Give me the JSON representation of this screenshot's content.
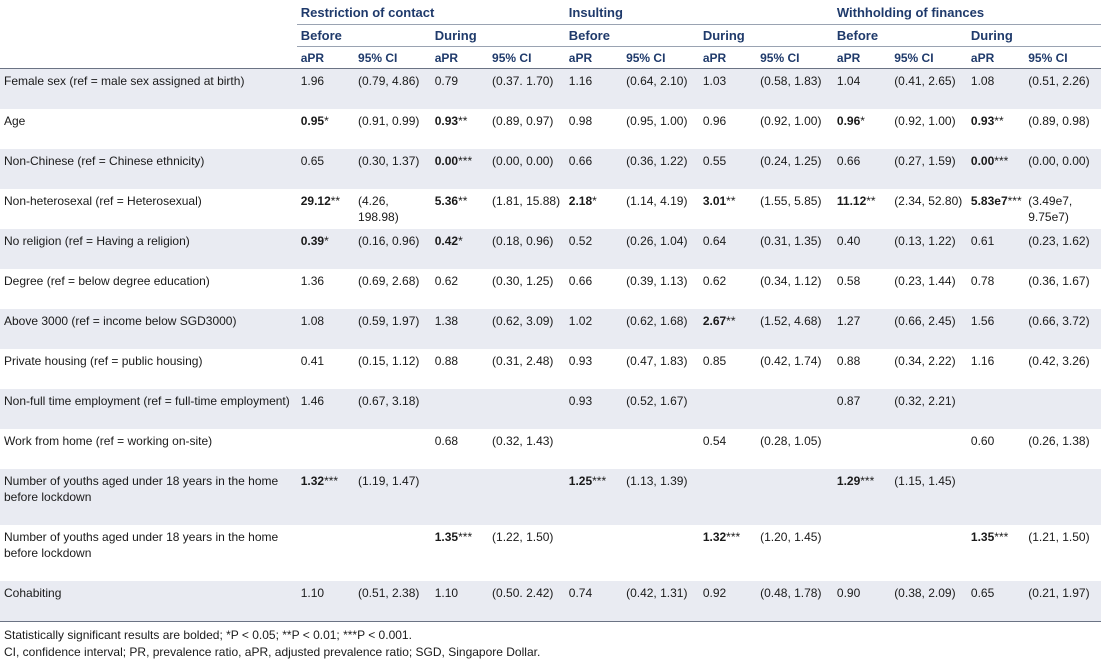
{
  "header": {
    "groups": [
      "Restriction of contact",
      "Insulting",
      "Withholding of finances"
    ],
    "periods": [
      "Before",
      "During"
    ],
    "stat_cols": [
      "aPR",
      "95% CI"
    ]
  },
  "rows": [
    {
      "label": "Female sex (ref = male sex assigned at birth)",
      "cells": [
        [
          "1.96",
          "",
          false
        ],
        [
          "(0.79, 4.86)",
          "",
          false
        ],
        [
          "0.79",
          "",
          false
        ],
        [
          "(0.37. 1.70)",
          "",
          false
        ],
        [
          "1.16",
          "",
          false
        ],
        [
          "(0.64, 2.10)",
          "",
          false
        ],
        [
          "1.03",
          "",
          false
        ],
        [
          "(0.58, 1.83)",
          "",
          false
        ],
        [
          "1.04",
          "",
          false
        ],
        [
          "(0.41, 2.65)",
          "",
          false
        ],
        [
          "1.08",
          "",
          false
        ],
        [
          "(0.51, 2.26)",
          "",
          false
        ]
      ]
    },
    {
      "label": "Age",
      "cells": [
        [
          "0.95",
          "*",
          true
        ],
        [
          "(0.91, 0.99)",
          "",
          false
        ],
        [
          "0.93",
          "**",
          true
        ],
        [
          "(0.89, 0.97)",
          "",
          false
        ],
        [
          "0.98",
          "",
          false
        ],
        [
          "(0.95, 1.00)",
          "",
          false
        ],
        [
          "0.96",
          "",
          false
        ],
        [
          "(0.92, 1.00)",
          "",
          false
        ],
        [
          "0.96",
          "*",
          true
        ],
        [
          "(0.92, 1.00)",
          "",
          false
        ],
        [
          "0.93",
          "**",
          true
        ],
        [
          "(0.89, 0.98)",
          "",
          false
        ]
      ]
    },
    {
      "label": "Non-Chinese (ref = Chinese ethnicity)",
      "cells": [
        [
          "0.65",
          "",
          false
        ],
        [
          "(0.30, 1.37)",
          "",
          false
        ],
        [
          "0.00",
          "***",
          true
        ],
        [
          "(0.00, 0.00)",
          "",
          false
        ],
        [
          "0.66",
          "",
          false
        ],
        [
          "(0.36, 1.22)",
          "",
          false
        ],
        [
          "0.55",
          "",
          false
        ],
        [
          "(0.24, 1.25)",
          "",
          false
        ],
        [
          "0.66",
          "",
          false
        ],
        [
          "(0.27, 1.59)",
          "",
          false
        ],
        [
          "0.00",
          "***",
          true
        ],
        [
          "(0.00, 0.00)",
          "",
          false
        ]
      ]
    },
    {
      "label": "Non-heterosexal (ref = Heterosexual)",
      "cells": [
        [
          "29.12",
          "**",
          true
        ],
        [
          "(4.26, 198.98)",
          "",
          false
        ],
        [
          "5.36",
          "**",
          true
        ],
        [
          "(1.81, 15.88)",
          "",
          false
        ],
        [
          "2.18",
          "*",
          true
        ],
        [
          "(1.14, 4.19)",
          "",
          false
        ],
        [
          "3.01",
          "**",
          true
        ],
        [
          "(1.55, 5.85)",
          "",
          false
        ],
        [
          "11.12",
          "**",
          true
        ],
        [
          "(2.34, 52.80)",
          "",
          false
        ],
        [
          "5.83e7",
          "***",
          true
        ],
        [
          "(3.49e7, 9.75e7)",
          "",
          false
        ]
      ]
    },
    {
      "label": "No religion (ref = Having a religion)",
      "cells": [
        [
          "0.39",
          "*",
          true
        ],
        [
          "(0.16, 0.96)",
          "",
          false
        ],
        [
          "0.42",
          "*",
          true
        ],
        [
          "(0.18, 0.96)",
          "",
          false
        ],
        [
          "0.52",
          "",
          false
        ],
        [
          "(0.26, 1.04)",
          "",
          false
        ],
        [
          "0.64",
          "",
          false
        ],
        [
          "(0.31, 1.35)",
          "",
          false
        ],
        [
          "0.40",
          "",
          false
        ],
        [
          "(0.13, 1.22)",
          "",
          false
        ],
        [
          "0.61",
          "",
          false
        ],
        [
          "(0.23, 1.62)",
          "",
          false
        ]
      ]
    },
    {
      "label": "Degree (ref = below degree education)",
      "cells": [
        [
          "1.36",
          "",
          false
        ],
        [
          "(0.69, 2.68)",
          "",
          false
        ],
        [
          "0.62",
          "",
          false
        ],
        [
          "(0.30, 1.25)",
          "",
          false
        ],
        [
          "0.66",
          "",
          false
        ],
        [
          "(0.39, 1.13)",
          "",
          false
        ],
        [
          "0.62",
          "",
          false
        ],
        [
          "(0.34, 1.12)",
          "",
          false
        ],
        [
          "0.58",
          "",
          false
        ],
        [
          "(0.23, 1.44)",
          "",
          false
        ],
        [
          "0.78",
          "",
          false
        ],
        [
          "(0.36, 1.67)",
          "",
          false
        ]
      ]
    },
    {
      "label": "Above 3000 (ref = income below SGD3000)",
      "cells": [
        [
          "1.08",
          "",
          false
        ],
        [
          "(0.59, 1.97)",
          "",
          false
        ],
        [
          "1.38",
          "",
          false
        ],
        [
          "(0.62, 3.09)",
          "",
          false
        ],
        [
          "1.02",
          "",
          false
        ],
        [
          "(0.62, 1.68)",
          "",
          false
        ],
        [
          "2.67",
          "**",
          true
        ],
        [
          "(1.52, 4.68)",
          "",
          false
        ],
        [
          "1.27",
          "",
          false
        ],
        [
          "(0.66, 2.45)",
          "",
          false
        ],
        [
          "1.56",
          "",
          false
        ],
        [
          "(0.66, 3.72)",
          "",
          false
        ]
      ]
    },
    {
      "label": "Private housing (ref = public housing)",
      "cells": [
        [
          "0.41",
          "",
          false
        ],
        [
          "(0.15, 1.12)",
          "",
          false
        ],
        [
          "0.88",
          "",
          false
        ],
        [
          "(0.31, 2.48)",
          "",
          false
        ],
        [
          "0.93",
          "",
          false
        ],
        [
          "(0.47, 1.83)",
          "",
          false
        ],
        [
          "0.85",
          "",
          false
        ],
        [
          "(0.42, 1.74)",
          "",
          false
        ],
        [
          "0.88",
          "",
          false
        ],
        [
          "(0.34, 2.22)",
          "",
          false
        ],
        [
          "1.16",
          "",
          false
        ],
        [
          "(0.42, 3.26)",
          "",
          false
        ]
      ]
    },
    {
      "label": "Non-full time employment (ref = full-time employment)",
      "cells": [
        [
          "1.46",
          "",
          false
        ],
        [
          "(0.67, 3.18)",
          "",
          false
        ],
        [
          "",
          "",
          false
        ],
        [
          "",
          "",
          false
        ],
        [
          "0.93",
          "",
          false
        ],
        [
          "(0.52, 1.67)",
          "",
          false
        ],
        [
          "",
          "",
          false
        ],
        [
          "",
          "",
          false
        ],
        [
          "0.87",
          "",
          false
        ],
        [
          "(0.32, 2.21)",
          "",
          false
        ],
        [
          "",
          "",
          false
        ],
        [
          "",
          "",
          false
        ]
      ]
    },
    {
      "label": "Work from home (ref = working on-site)",
      "cells": [
        [
          "",
          "",
          false
        ],
        [
          "",
          "",
          false
        ],
        [
          "0.68",
          "",
          false
        ],
        [
          "(0.32, 1.43)",
          "",
          false
        ],
        [
          "",
          "",
          false
        ],
        [
          "",
          "",
          false
        ],
        [
          "0.54",
          "",
          false
        ],
        [
          "(0.28, 1.05)",
          "",
          false
        ],
        [
          "",
          "",
          false
        ],
        [
          "",
          "",
          false
        ],
        [
          "0.60",
          "",
          false
        ],
        [
          "(0.26, 1.38)",
          "",
          false
        ]
      ]
    },
    {
      "label": "Number of youths aged under 18 years in the home before lockdown",
      "cells": [
        [
          "1.32",
          "***",
          true
        ],
        [
          "(1.19, 1.47)",
          "",
          false
        ],
        [
          "",
          "",
          false
        ],
        [
          "",
          "",
          false
        ],
        [
          "1.25",
          "***",
          true
        ],
        [
          "(1.13, 1.39)",
          "",
          false
        ],
        [
          "",
          "",
          false
        ],
        [
          "",
          "",
          false
        ],
        [
          "1.29",
          "***",
          true
        ],
        [
          "(1.15, 1.45)",
          "",
          false
        ],
        [
          "",
          "",
          false
        ],
        [
          "",
          "",
          false
        ]
      ]
    },
    {
      "label": "Number of youths aged under 18 years in the home before lockdown",
      "cells": [
        [
          "",
          "",
          false
        ],
        [
          "",
          "",
          false
        ],
        [
          "1.35",
          "***",
          true
        ],
        [
          "(1.22, 1.50)",
          "",
          false
        ],
        [
          "",
          "",
          false
        ],
        [
          "",
          "",
          false
        ],
        [
          "1.32",
          "***",
          true
        ],
        [
          "(1.20, 1.45)",
          "",
          false
        ],
        [
          "",
          "",
          false
        ],
        [
          "",
          "",
          false
        ],
        [
          "1.35",
          "***",
          true
        ],
        [
          "(1.21, 1.50)",
          "",
          false
        ]
      ]
    },
    {
      "label": "Cohabiting",
      "cells": [
        [
          "1.10",
          "",
          false
        ],
        [
          "(0.51, 2.38)",
          "",
          false
        ],
        [
          "1.10",
          "",
          false
        ],
        [
          "(0.50. 2.42)",
          "",
          false
        ],
        [
          "0.74",
          "",
          false
        ],
        [
          "(0.42, 1.31)",
          "",
          false
        ],
        [
          "0.92",
          "",
          false
        ],
        [
          "(0.48, 1.78)",
          "",
          false
        ],
        [
          "0.90",
          "",
          false
        ],
        [
          "(0.38, 2.09)",
          "",
          false
        ],
        [
          "0.65",
          "",
          false
        ],
        [
          "(0.21, 1.97)",
          "",
          false
        ]
      ]
    }
  ],
  "footnotes": {
    "line1": "Statistically significant results are bolded; *P < 0.05; **P < 0.01; ***P < 0.001.",
    "line2": "CI, confidence interval; PR, prevalence ratio, aPR, adjusted prevalence ratio; SGD, Singapore Dollar."
  }
}
